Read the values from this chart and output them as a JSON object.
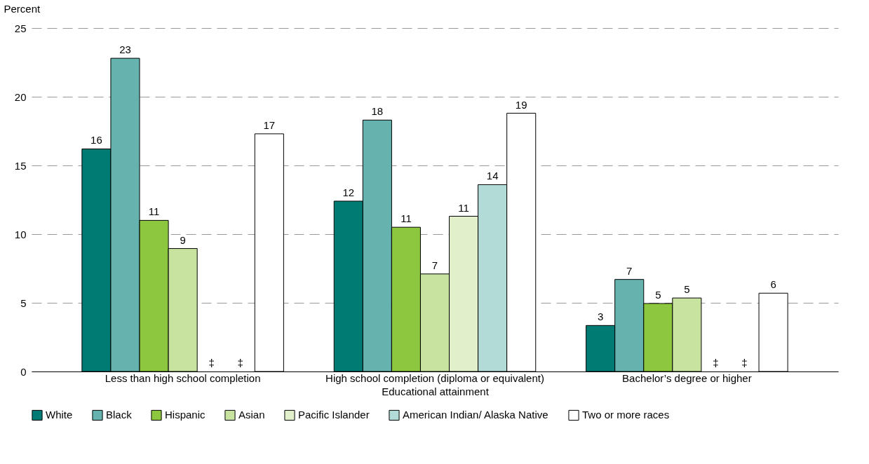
{
  "chart_data": {
    "type": "bar",
    "xlabel": "Educational attainment",
    "ylabel": "Percent",
    "categories": [
      "Less than high school completion",
      "High school completion (diploma or equivalent)",
      "Bachelor’s degree or higher"
    ],
    "series": [
      {
        "name": "White",
        "color": "#007b74",
        "values": [
          16.2,
          12.4,
          3.35
        ],
        "value_labels": [
          "16",
          "12",
          "3"
        ]
      },
      {
        "name": "Black",
        "color": "#66b2ae",
        "values": [
          22.8,
          18.3,
          6.7
        ],
        "value_labels": [
          "23",
          "18",
          "7"
        ]
      },
      {
        "name": "Hispanic",
        "color": "#8dc63f",
        "values": [
          11.0,
          10.5,
          4.95
        ],
        "value_labels": [
          "11",
          "11",
          "5"
        ]
      },
      {
        "name": "Asian",
        "color": "#c8e3a0",
        "values": [
          8.95,
          7.1,
          5.35
        ],
        "value_labels": [
          "9",
          "7",
          "5"
        ]
      },
      {
        "name": "Pacific Islander",
        "color": "#e1efcb",
        "values": [
          null,
          11.3,
          null
        ],
        "value_labels": [
          "‡",
          "11",
          "‡"
        ]
      },
      {
        "name": "American Indian/ Alaska Native",
        "color": "#b2dbd7",
        "values": [
          null,
          13.6,
          null
        ],
        "value_labels": [
          "‡",
          "14",
          "‡"
        ]
      },
      {
        "name": "Two or more races",
        "color": "#ffffff",
        "values": [
          17.3,
          18.8,
          5.7
        ],
        "value_labels": [
          "17",
          "19",
          "6"
        ]
      }
    ],
    "ylim": [
      0,
      25
    ],
    "yticks": [
      0,
      5,
      10,
      15,
      20,
      25
    ],
    "grid": "y",
    "legend": "bottom"
  }
}
